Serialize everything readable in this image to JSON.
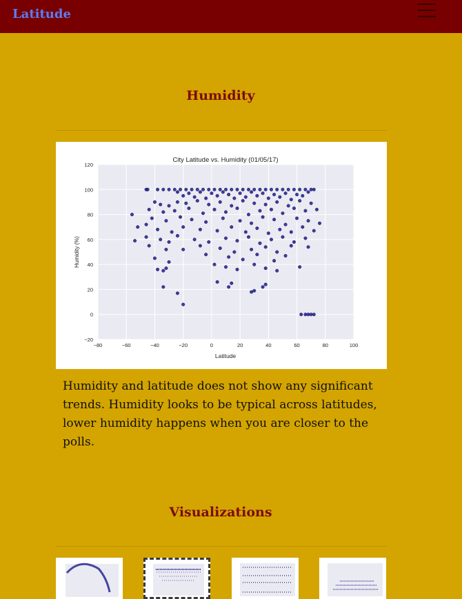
{
  "navbar": {
    "brand": "Latitude",
    "menu_icon": "hamburger-menu-icon"
  },
  "section_humidity": {
    "title": "Humidity",
    "description": "Humidity and latitude does not show any significant trends. Humidity looks to be typical across latitudes, lower humidity happens when you are closer to the polls."
  },
  "chart_data": {
    "type": "scatter",
    "title": "City Latitude vs. Humidity (01/05/17)",
    "xlabel": "Latitude",
    "ylabel": "Humidity (%)",
    "xlim": [
      -80,
      100
    ],
    "ylim": [
      -20,
      120
    ],
    "xticks": [
      -80,
      -60,
      -40,
      -20,
      0,
      20,
      40,
      60,
      80,
      100
    ],
    "yticks": [
      -20,
      0,
      20,
      40,
      60,
      80,
      100,
      120
    ],
    "grid": true,
    "marker_color": "#1c1c8c",
    "series": [
      {
        "points": [
          [
            -46,
            100
          ],
          [
            -45,
            100
          ],
          [
            -38,
            100
          ],
          [
            -34,
            100
          ],
          [
            -30,
            100
          ],
          [
            -26,
            100
          ],
          [
            -22,
            100
          ],
          [
            -18,
            100
          ],
          [
            -14,
            100
          ],
          [
            -10,
            100
          ],
          [
            -6,
            100
          ],
          [
            -2,
            100
          ],
          [
            2,
            100
          ],
          [
            6,
            100
          ],
          [
            10,
            100
          ],
          [
            14,
            100
          ],
          [
            18,
            100
          ],
          [
            22,
            100
          ],
          [
            26,
            100
          ],
          [
            30,
            100
          ],
          [
            34,
            100
          ],
          [
            38,
            100
          ],
          [
            42,
            100
          ],
          [
            46,
            100
          ],
          [
            50,
            100
          ],
          [
            54,
            100
          ],
          [
            58,
            100
          ],
          [
            62,
            100
          ],
          [
            66,
            100
          ],
          [
            70,
            100
          ],
          [
            72,
            100
          ],
          [
            -24,
            98
          ],
          [
            -16,
            97
          ],
          [
            -8,
            98
          ],
          [
            0,
            97
          ],
          [
            8,
            98
          ],
          [
            12,
            96
          ],
          [
            20,
            97
          ],
          [
            28,
            98
          ],
          [
            36,
            97
          ],
          [
            44,
            96
          ],
          [
            52,
            97
          ],
          [
            60,
            96
          ],
          [
            68,
            98
          ],
          [
            -20,
            95
          ],
          [
            -12,
            94
          ],
          [
            -4,
            93
          ],
          [
            4,
            95
          ],
          [
            16,
            93
          ],
          [
            24,
            94
          ],
          [
            32,
            95
          ],
          [
            40,
            93
          ],
          [
            48,
            94
          ],
          [
            56,
            92
          ],
          [
            64,
            95
          ],
          [
            -40,
            90
          ],
          [
            -36,
            88
          ],
          [
            -30,
            87
          ],
          [
            -24,
            90
          ],
          [
            -18,
            89
          ],
          [
            -10,
            91
          ],
          [
            -2,
            88
          ],
          [
            6,
            90
          ],
          [
            14,
            87
          ],
          [
            22,
            91
          ],
          [
            30,
            89
          ],
          [
            38,
            88
          ],
          [
            46,
            90
          ],
          [
            54,
            87
          ],
          [
            62,
            91
          ],
          [
            70,
            89
          ],
          [
            -44,
            84
          ],
          [
            -34,
            82
          ],
          [
            -26,
            83
          ],
          [
            -16,
            85
          ],
          [
            -6,
            81
          ],
          [
            2,
            84
          ],
          [
            10,
            82
          ],
          [
            18,
            85
          ],
          [
            26,
            80
          ],
          [
            34,
            83
          ],
          [
            42,
            84
          ],
          [
            50,
            81
          ],
          [
            58,
            85
          ],
          [
            66,
            83
          ],
          [
            74,
            84
          ],
          [
            -56,
            80
          ],
          [
            -42,
            77
          ],
          [
            -32,
            75
          ],
          [
            -22,
            78
          ],
          [
            -14,
            76
          ],
          [
            -4,
            74
          ],
          [
            8,
            77
          ],
          [
            20,
            75
          ],
          [
            28,
            73
          ],
          [
            36,
            78
          ],
          [
            44,
            76
          ],
          [
            52,
            72
          ],
          [
            60,
            77
          ],
          [
            68,
            75
          ],
          [
            76,
            73
          ],
          [
            -52,
            70
          ],
          [
            -46,
            72
          ],
          [
            -38,
            68
          ],
          [
            -28,
            66
          ],
          [
            -20,
            70
          ],
          [
            -8,
            68
          ],
          [
            4,
            67
          ],
          [
            14,
            70
          ],
          [
            24,
            66
          ],
          [
            32,
            69
          ],
          [
            40,
            65
          ],
          [
            48,
            68
          ],
          [
            56,
            66
          ],
          [
            64,
            70
          ],
          [
            72,
            67
          ],
          [
            -46,
            62
          ],
          [
            -36,
            60
          ],
          [
            -30,
            58
          ],
          [
            -24,
            63
          ],
          [
            -12,
            60
          ],
          [
            -2,
            58
          ],
          [
            10,
            61
          ],
          [
            18,
            59
          ],
          [
            26,
            62
          ],
          [
            34,
            57
          ],
          [
            42,
            60
          ],
          [
            50,
            62
          ],
          [
            58,
            58
          ],
          [
            66,
            61
          ],
          [
            -54,
            59
          ],
          [
            -44,
            55
          ],
          [
            -32,
            52
          ],
          [
            -20,
            52
          ],
          [
            -8,
            55
          ],
          [
            6,
            53
          ],
          [
            16,
            50
          ],
          [
            28,
            52
          ],
          [
            38,
            54
          ],
          [
            46,
            50
          ],
          [
            56,
            55
          ],
          [
            68,
            54
          ],
          [
            -40,
            45
          ],
          [
            -30,
            42
          ],
          [
            -4,
            48
          ],
          [
            12,
            46
          ],
          [
            22,
            44
          ],
          [
            32,
            48
          ],
          [
            44,
            43
          ],
          [
            52,
            47
          ],
          [
            -38,
            36
          ],
          [
            -34,
            35
          ],
          [
            -32,
            37
          ],
          [
            2,
            40
          ],
          [
            10,
            38
          ],
          [
            18,
            36
          ],
          [
            30,
            40
          ],
          [
            38,
            37
          ],
          [
            46,
            35
          ],
          [
            62,
            38
          ],
          [
            -34,
            22
          ],
          [
            -24,
            17
          ],
          [
            -20,
            8
          ],
          [
            4,
            26
          ],
          [
            12,
            22
          ],
          [
            14,
            25
          ],
          [
            28,
            18
          ],
          [
            30,
            19
          ],
          [
            36,
            22
          ],
          [
            38,
            24
          ],
          [
            63,
            0
          ],
          [
            66,
            0
          ],
          [
            68,
            0
          ],
          [
            70,
            0
          ],
          [
            72,
            0
          ]
        ]
      }
    ]
  },
  "section_visualizations": {
    "title": "Visualizations",
    "thumbnails": [
      {
        "name": "Temperature plot thumbnail",
        "active": false
      },
      {
        "name": "Humidity plot thumbnail",
        "active": true
      },
      {
        "name": "Cloudiness plot thumbnail",
        "active": false
      },
      {
        "name": "Wind speed plot thumbnail",
        "active": false
      }
    ]
  }
}
